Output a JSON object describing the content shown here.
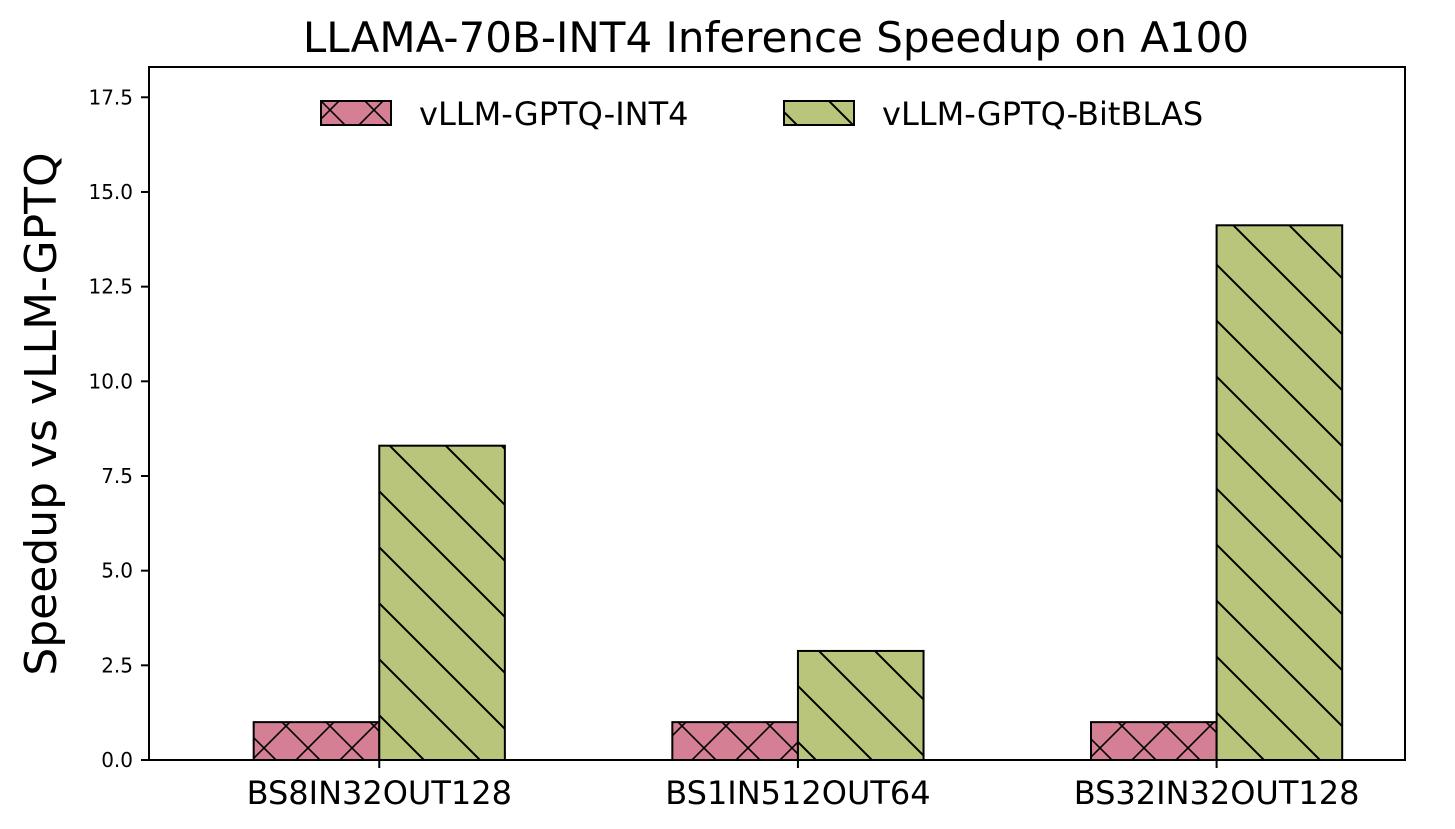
{
  "chart_data": {
    "type": "bar",
    "title": "LLAMA-70B-INT4 Inference Speedup on A100",
    "xlabel": "",
    "ylabel": "Speedup vs vLLM-GPTQ",
    "categories": [
      "BS8IN32OUT128",
      "BS1IN512OUT64",
      "BS32IN32OUT128"
    ],
    "series": [
      {
        "name": "vLLM-GPTQ-INT4",
        "values": [
          1.0,
          1.0,
          1.0
        ],
        "color": "#d57f94",
        "hatch": "x"
      },
      {
        "name": "vLLM-GPTQ-BitBLAS",
        "values": [
          8.3,
          2.88,
          14.12
        ],
        "color": "#b9c57a",
        "hatch": "\\"
      }
    ],
    "ylim": [
      0,
      18.3
    ],
    "yticks": [
      "0.0",
      "2.5",
      "5.0",
      "7.5",
      "10.0",
      "12.5",
      "15.0",
      "17.5"
    ],
    "grid": false,
    "legend": "upper center"
  }
}
